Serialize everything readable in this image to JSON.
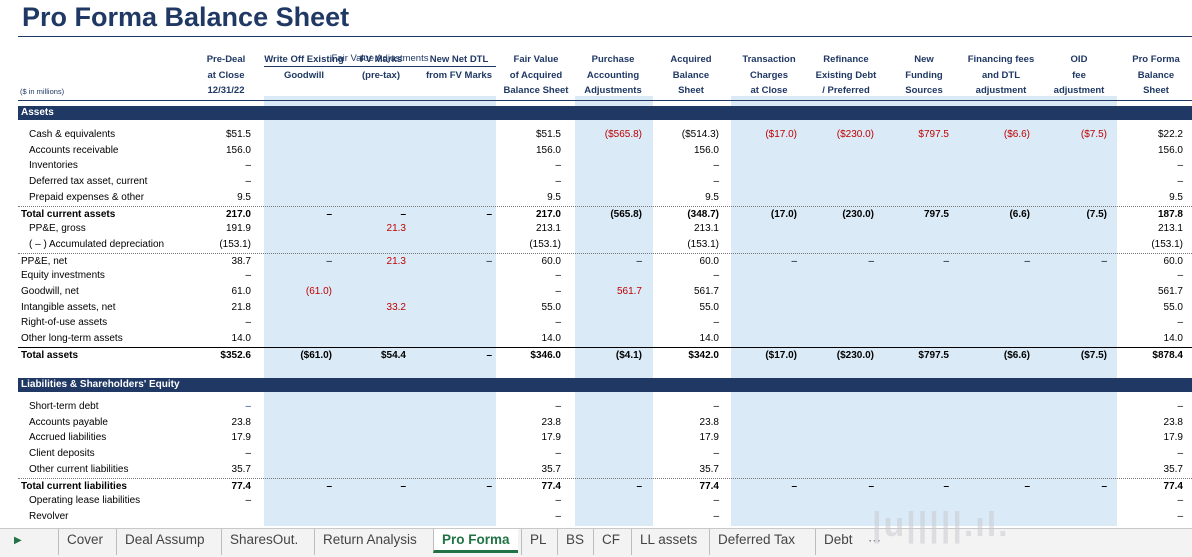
{
  "title": "Pro Forma Balance Sheet",
  "units_note": "($ in millions)",
  "fair_value_group": "Fair Value Adjustments",
  "columns": [
    {
      "l1": "Pre-Deal",
      "l2": "at Close",
      "l3": "12/31/22"
    },
    {
      "l1": "",
      "l2": "Write Off Existing",
      "l3": "Goodwill"
    },
    {
      "l1": "",
      "l2": "FV Marks",
      "l3": "(pre-tax)"
    },
    {
      "l1": "",
      "l2": "New Net DTL",
      "l3": "from FV Marks"
    },
    {
      "l1": "Fair Value",
      "l2": "of Acquired",
      "l3": "Balance Sheet"
    },
    {
      "l1": "Purchase",
      "l2": "Accounting",
      "l3": "Adjustments"
    },
    {
      "l1": "Acquired",
      "l2": "Balance",
      "l3": "Sheet"
    },
    {
      "l1": "Transaction",
      "l2": "Charges",
      "l3": "at Close"
    },
    {
      "l1": "Refinance",
      "l2": "Existing Debt",
      "l3": "/ Preferred"
    },
    {
      "l1": "New",
      "l2": "Funding",
      "l3": "Sources"
    },
    {
      "l1": "Financing fees",
      "l2": "and DTL",
      "l3": "adjustment"
    },
    {
      "l1": "OID",
      "l2": "fee",
      "l3": "adjustment"
    },
    {
      "l1": "Pro Forma",
      "l2": "Balance",
      "l3": "Sheet"
    }
  ],
  "sections": {
    "assets": "Assets",
    "liabilities": "Liabilities & Shareholders' Equity"
  },
  "asset_rows": [
    {
      "label": "Cash & equivalents",
      "indent": true,
      "v": [
        "$51.5",
        "",
        "",
        "",
        "$51.5",
        "($565.8)",
        "($514.3)",
        "($17.0)",
        "($230.0)",
        "$797.5",
        "($6.6)",
        "($7.5)",
        "$22.2"
      ]
    },
    {
      "label": "Accounts receivable",
      "indent": true,
      "v": [
        "156.0",
        "",
        "",
        "",
        "156.0",
        "",
        "156.0",
        "",
        "",
        "",
        "",
        "",
        "156.0"
      ]
    },
    {
      "label": "Inventories",
      "indent": true,
      "v": [
        "–",
        "",
        "",
        "",
        "–",
        "",
        "–",
        "",
        "",
        "",
        "",
        "",
        "–"
      ]
    },
    {
      "label": "Deferred tax asset, current",
      "indent": true,
      "v": [
        "–",
        "",
        "",
        "",
        "–",
        "",
        "–",
        "",
        "",
        "",
        "",
        "",
        "–"
      ]
    },
    {
      "label": "Prepaid expenses & other",
      "indent": true,
      "v": [
        "9.5",
        "",
        "",
        "",
        "9.5",
        "",
        "9.5",
        "",
        "",
        "",
        "",
        "",
        "9.5"
      ]
    },
    {
      "label": "Total current assets",
      "bold": true,
      "line": "dot",
      "v": [
        "217.0",
        "–",
        "–",
        "–",
        "217.0",
        "(565.8)",
        "(348.7)",
        "(17.0)",
        "(230.0)",
        "797.5",
        "(6.6)",
        "(7.5)",
        "187.8"
      ]
    },
    {
      "label": "PP&E, gross",
      "indent": true,
      "v": [
        "191.9",
        "",
        "21.3",
        "",
        "213.1",
        "",
        "213.1",
        "",
        "",
        "",
        "",
        "",
        "213.1"
      ]
    },
    {
      "label": "( – ) Accumulated depreciation",
      "indent": true,
      "v": [
        "(153.1)",
        "",
        "",
        "",
        "(153.1)",
        "",
        "(153.1)",
        "",
        "",
        "",
        "",
        "",
        "(153.1)"
      ]
    },
    {
      "label": "PP&E, net",
      "line": "dot",
      "v": [
        "38.7",
        "–",
        "21.3",
        "–",
        "60.0",
        "–",
        "60.0",
        "–",
        "–",
        "–",
        "–",
        "–",
        "60.0"
      ]
    },
    {
      "label": "Equity investments",
      "v": [
        "–",
        "",
        "",
        "",
        "–",
        "",
        "–",
        "",
        "",
        "",
        "",
        "",
        "–"
      ]
    },
    {
      "label": "Goodwill, net",
      "v": [
        "61.0",
        "(61.0)",
        "",
        "",
        "–",
        "561.7",
        "561.7",
        "",
        "",
        "",
        "",
        "",
        "561.7"
      ]
    },
    {
      "label": "Intangible assets, net",
      "v": [
        "21.8",
        "",
        "33.2",
        "",
        "55.0",
        "",
        "55.0",
        "",
        "",
        "",
        "",
        "",
        "55.0"
      ]
    },
    {
      "label": "Right-of-use assets",
      "v": [
        "–",
        "",
        "",
        "",
        "–",
        "",
        "–",
        "",
        "",
        "",
        "",
        "",
        "–"
      ]
    },
    {
      "label": "Other long-term assets",
      "v": [
        "14.0",
        "",
        "",
        "",
        "14.0",
        "",
        "14.0",
        "",
        "",
        "",
        "",
        "",
        "14.0"
      ]
    },
    {
      "label": "Total assets",
      "bold": true,
      "line": "solid",
      "v": [
        "$352.6",
        "($61.0)",
        "$54.4",
        "–",
        "$346.0",
        "($4.1)",
        "$342.0",
        "($17.0)",
        "($230.0)",
        "$797.5",
        "($6.6)",
        "($7.5)",
        "$878.4"
      ]
    }
  ],
  "liab_rows": [
    {
      "label": "Short-term debt",
      "indent": true,
      "v": [
        "–",
        "",
        "",
        "",
        "–",
        "",
        "–",
        "",
        "",
        "",
        "",
        "",
        "–"
      ]
    },
    {
      "label": "Accounts payable",
      "indent": true,
      "v": [
        "23.8",
        "",
        "",
        "",
        "23.8",
        "",
        "23.8",
        "",
        "",
        "",
        "",
        "",
        "23.8"
      ]
    },
    {
      "label": "Accrued liabilities",
      "indent": true,
      "v": [
        "17.9",
        "",
        "",
        "",
        "17.9",
        "",
        "17.9",
        "",
        "",
        "",
        "",
        "",
        "17.9"
      ]
    },
    {
      "label": "Client deposits",
      "indent": true,
      "v": [
        "–",
        "",
        "",
        "",
        "–",
        "",
        "–",
        "",
        "",
        "",
        "",
        "",
        "–"
      ]
    },
    {
      "label": "Other current liabilities",
      "indent": true,
      "v": [
        "35.7",
        "",
        "",
        "",
        "35.7",
        "",
        "35.7",
        "",
        "",
        "",
        "",
        "",
        "35.7"
      ]
    },
    {
      "label": "Total current liabilities",
      "bold": true,
      "line": "dot",
      "v": [
        "77.4",
        "–",
        "–",
        "–",
        "77.4",
        "–",
        "77.4",
        "–",
        "–",
        "–",
        "–",
        "–",
        "77.4"
      ]
    },
    {
      "label": "Operating lease liabilities",
      "indent": true,
      "v": [
        "–",
        "",
        "",
        "",
        "–",
        "",
        "–",
        "",
        "",
        "",
        "",
        "",
        "–"
      ]
    },
    {
      "label": "Revolver",
      "indent": true,
      "v": [
        "",
        "",
        "",
        "",
        "–",
        "",
        "–",
        "",
        "",
        "",
        "",
        "",
        "–"
      ]
    }
  ],
  "tabs": [
    "Cover",
    "Deal Assump",
    "SharesOut.",
    "Return Analysis",
    "Pro Forma",
    "PL",
    "BS",
    "CF",
    "LL assets",
    "Deferred Tax",
    "Debt"
  ],
  "active_tab": "Pro Forma"
}
